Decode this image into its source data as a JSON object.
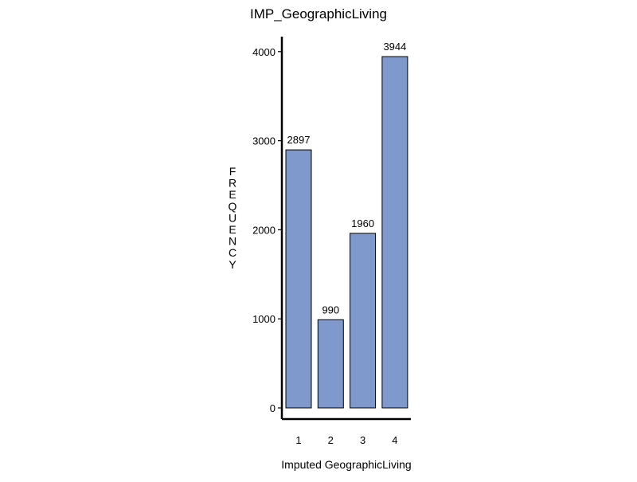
{
  "chart_data": {
    "type": "bar",
    "title": "IMP_GeographicLiving",
    "xlabel": "Imputed GeographicLiving",
    "ylabel": "FREQUENCY",
    "categories": [
      "1",
      "2",
      "3",
      "4"
    ],
    "values": [
      2897,
      990,
      1960,
      3944
    ],
    "value_labels": [
      "2897",
      "990",
      "1960",
      "3944"
    ],
    "yticks": [
      0,
      1000,
      2000,
      3000,
      4000
    ],
    "ytick_labels": [
      "0",
      "1000",
      "2000",
      "3000",
      "4000"
    ],
    "ylim": [
      0,
      4150
    ],
    "bar_color": "#7f99cd",
    "bar_edge_color": "#000000",
    "grid": false,
    "legend": "none"
  }
}
